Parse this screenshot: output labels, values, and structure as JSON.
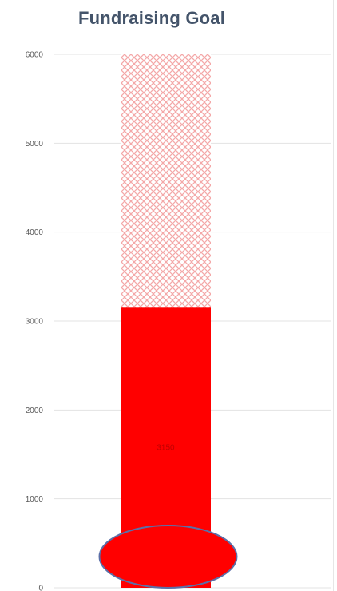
{
  "chart_data": {
    "type": "bar",
    "title": "Fundraising Goal",
    "xlabel": "",
    "ylabel": "",
    "ylim": [
      0,
      6000
    ],
    "yticks": [
      0,
      1000,
      2000,
      3000,
      4000,
      5000,
      6000
    ],
    "grid": true,
    "legend": "none",
    "categories": [
      ""
    ],
    "goal": 6000,
    "raised": 3150,
    "data_labels": [
      "3150"
    ],
    "colors": {
      "raised": "#ff0000",
      "goal_pattern": "#f4a7a7",
      "bulb_stroke": "#5b6fa8",
      "title": "#44546a",
      "grid": "#e3e3e3"
    }
  }
}
